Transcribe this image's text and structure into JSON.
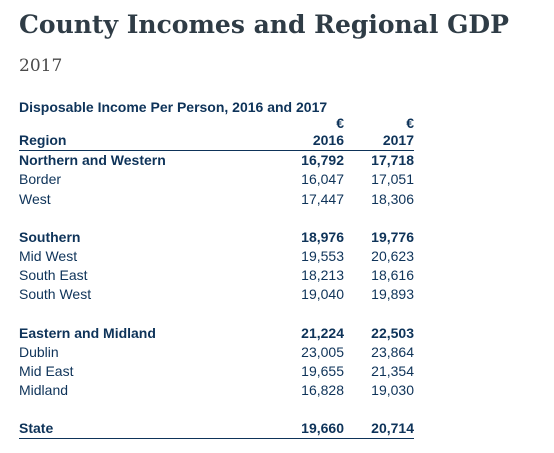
{
  "page": {
    "title": "County Incomes and Regional GDP",
    "subtitle": "2017"
  },
  "table": {
    "title": "Disposable Income Per Person, 2016 and 2017",
    "currency": [
      "€",
      "€"
    ],
    "columns": [
      "Region",
      "2016",
      "2017"
    ],
    "groups": [
      {
        "region": "Northern and Western",
        "v2016": "16,792",
        "v2017": "17,718",
        "rows": [
          {
            "name": "Border",
            "v2016": "16,047",
            "v2017": "17,051"
          },
          {
            "name": "West",
            "v2016": "17,447",
            "v2017": "18,306"
          }
        ]
      },
      {
        "region": "Southern",
        "v2016": "18,976",
        "v2017": "19,776",
        "rows": [
          {
            "name": "Mid West",
            "v2016": "19,553",
            "v2017": "20,623"
          },
          {
            "name": "South East",
            "v2016": "18,213",
            "v2017": "18,616"
          },
          {
            "name": "South West",
            "v2016": "19,040",
            "v2017": "19,893"
          }
        ]
      },
      {
        "region": "Eastern and Midland",
        "v2016": "21,224",
        "v2017": "22,503",
        "rows": [
          {
            "name": "Dublin",
            "v2016": "23,005",
            "v2017": "23,864"
          },
          {
            "name": "Mid East",
            "v2016": "19,655",
            "v2017": "21,354"
          },
          {
            "name": "Midland",
            "v2016": "16,828",
            "v2017": "19,030"
          }
        ]
      }
    ],
    "state": {
      "name": "State",
      "v2016": "19,660",
      "v2017": "20,714"
    }
  }
}
